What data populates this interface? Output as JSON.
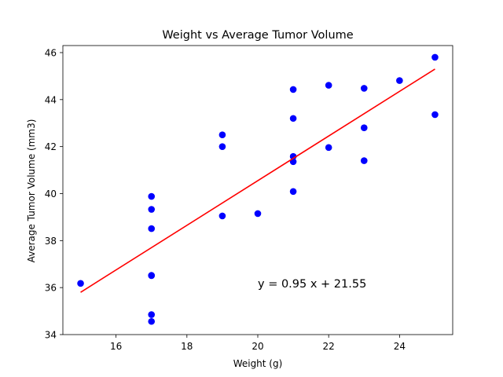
{
  "chart_data": {
    "type": "scatter",
    "title": "Weight vs Average Tumor Volume",
    "xlabel": "Weight (g)",
    "ylabel": "Average Tumor Volume (mm3)",
    "xlim": [
      14.5,
      25.5
    ],
    "ylim": [
      34,
      46.3
    ],
    "xticks": [
      16,
      18,
      20,
      22,
      24
    ],
    "yticks": [
      34,
      36,
      38,
      40,
      42,
      44,
      46
    ],
    "grid": false,
    "marker_color": "#0000ff",
    "line_color": "#ff0000",
    "points": [
      {
        "x": 15,
        "y": 36.18
      },
      {
        "x": 17,
        "y": 34.56
      },
      {
        "x": 17,
        "y": 34.85
      },
      {
        "x": 17,
        "y": 36.51
      },
      {
        "x": 17,
        "y": 36.52
      },
      {
        "x": 17,
        "y": 38.51
      },
      {
        "x": 17,
        "y": 39.33
      },
      {
        "x": 17,
        "y": 39.88
      },
      {
        "x": 19,
        "y": 39.05
      },
      {
        "x": 19,
        "y": 42.0
      },
      {
        "x": 19,
        "y": 42.5
      },
      {
        "x": 20,
        "y": 39.15
      },
      {
        "x": 21,
        "y": 40.09
      },
      {
        "x": 21,
        "y": 41.36
      },
      {
        "x": 21,
        "y": 41.58
      },
      {
        "x": 21,
        "y": 43.2
      },
      {
        "x": 21,
        "y": 44.43
      },
      {
        "x": 22,
        "y": 41.96
      },
      {
        "x": 22,
        "y": 44.61
      },
      {
        "x": 23,
        "y": 41.4
      },
      {
        "x": 23,
        "y": 42.8
      },
      {
        "x": 23,
        "y": 44.48
      },
      {
        "x": 24,
        "y": 44.81
      },
      {
        "x": 25,
        "y": 43.36
      },
      {
        "x": 25,
        "y": 45.8
      }
    ],
    "regression": {
      "slope": 0.95,
      "intercept": 21.55,
      "x_range": [
        15,
        25
      ]
    },
    "annotation": {
      "text": "y = 0.95 x + 21.55",
      "x": 20,
      "y": 36
    }
  }
}
